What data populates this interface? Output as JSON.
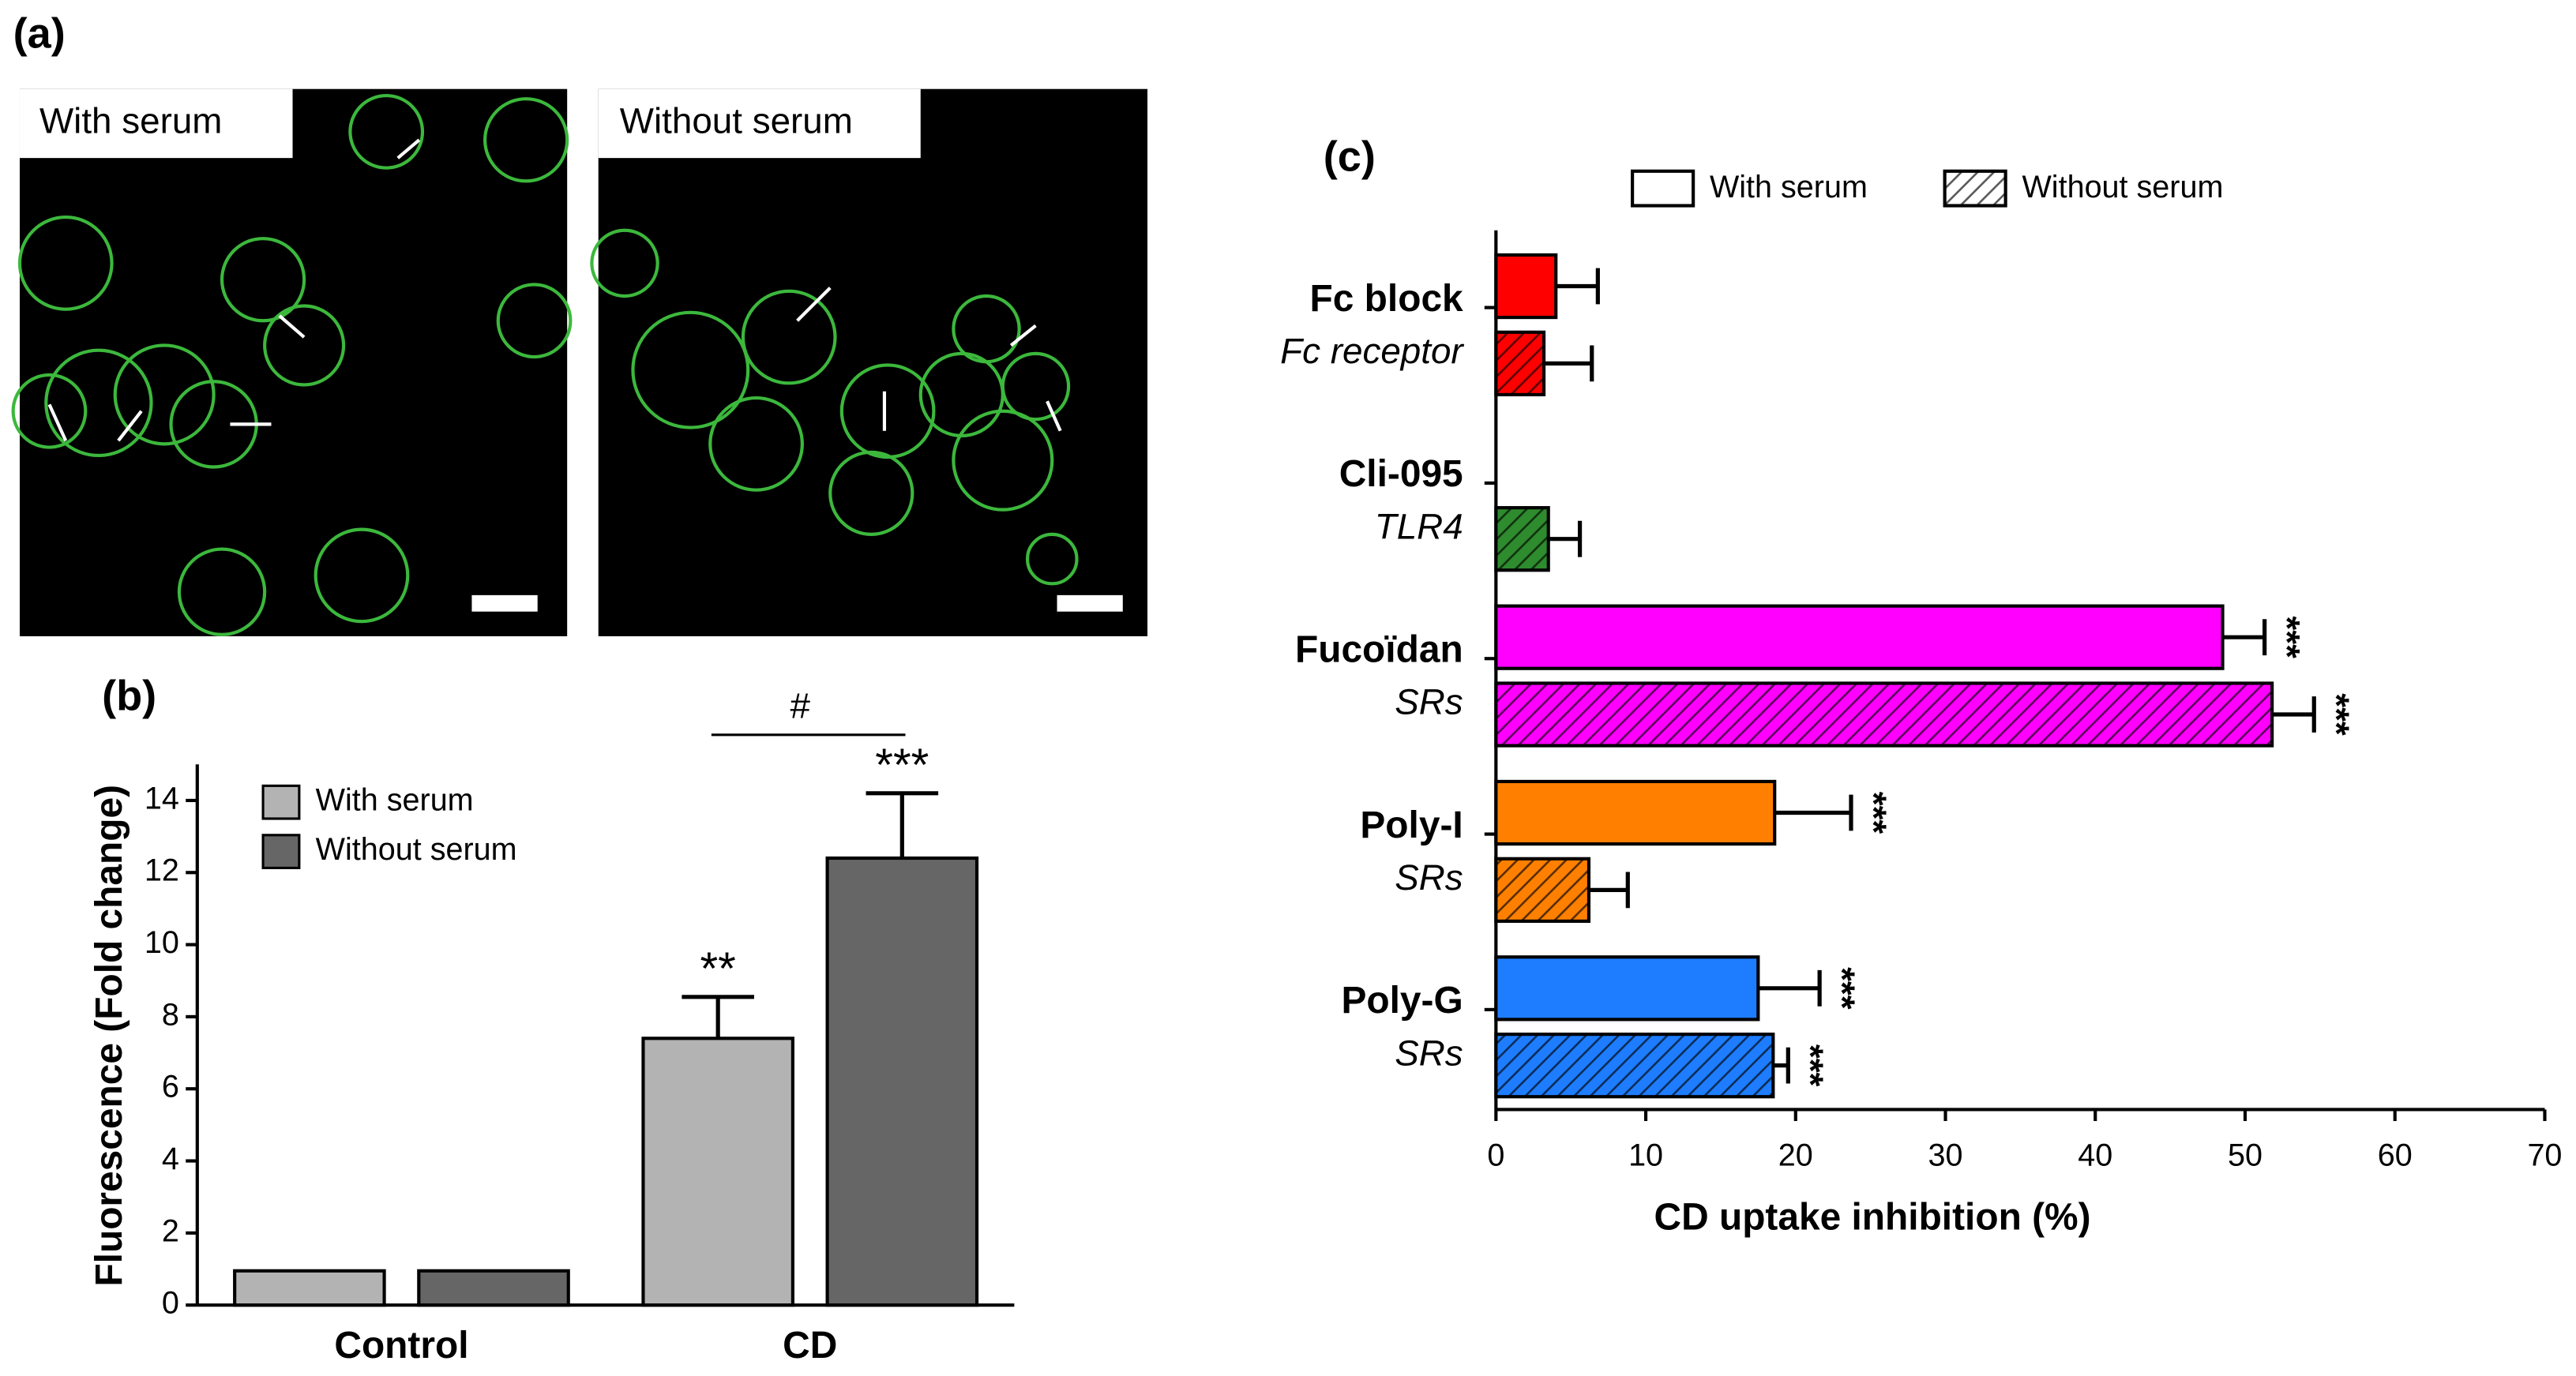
{
  "figure_a": {
    "label": "(a)",
    "images": [
      {
        "label": "With serum"
      },
      {
        "label": "Without serum"
      }
    ]
  },
  "chart_data": [
    {
      "type": "bar",
      "title": "(b)",
      "ylabel": "Fluorescence (Fold change)",
      "categories": [
        "Control",
        "CD"
      ],
      "series": [
        {
          "name": "With serum",
          "color": "#b3b3b3",
          "values": [
            0.95,
            7.4
          ],
          "errors": [
            null,
            1.15
          ],
          "annotations": [
            null,
            "**"
          ]
        },
        {
          "name": "Without serum",
          "color": "#666666",
          "values": [
            0.95,
            12.4
          ],
          "errors": [
            null,
            1.8
          ],
          "annotations": [
            null,
            "***"
          ]
        }
      ],
      "bracket": "#",
      "ylim": [
        0,
        15
      ],
      "yticks": [
        0,
        2,
        4,
        6,
        8,
        10,
        12,
        14
      ]
    },
    {
      "type": "hbar",
      "title": "(c)",
      "xlabel": "CD uptake inhibition (%)",
      "categories": [
        "Fc block",
        "Cli-095",
        "Fucoïdan",
        "Poly-I",
        "Poly-G"
      ],
      "sublabels": [
        "Fc receptor",
        "TLR4",
        "SRs",
        "SRs",
        "SRs"
      ],
      "colors": [
        "#ff0000",
        "#2e8b2e",
        "#ff00ff",
        "#ff8000",
        "#1e7dff"
      ],
      "series": [
        {
          "name": "With serum",
          "hatch": false,
          "values": [
            4.0,
            null,
            48.5,
            18.6,
            17.5
          ],
          "errors": [
            2.8,
            null,
            2.8,
            5.1,
            4.1
          ],
          "annotations": [
            null,
            null,
            "***",
            "***",
            "***"
          ]
        },
        {
          "name": "Without serum",
          "hatch": true,
          "values": [
            3.2,
            3.5,
            51.8,
            6.2,
            18.5
          ],
          "errors": [
            3.2,
            2.1,
            2.8,
            2.6,
            1.0
          ],
          "annotations": [
            null,
            null,
            "***",
            null,
            "***"
          ]
        }
      ],
      "xlim": [
        0,
        70
      ],
      "xticks": [
        0,
        10,
        20,
        30,
        40,
        50,
        60,
        70
      ]
    }
  ]
}
